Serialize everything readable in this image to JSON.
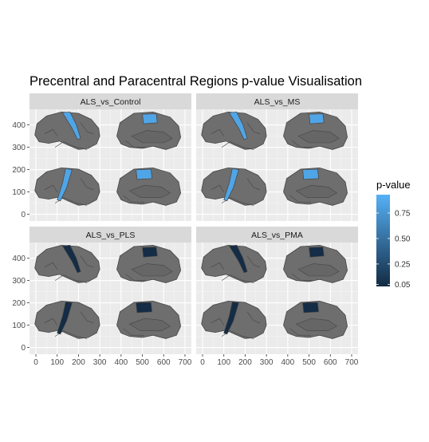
{
  "chart_data": {
    "type": "brain-atlas-facet",
    "title": "Precentral and Paracentral Regions p-value Visualisation",
    "xlabel": "",
    "ylabel": "",
    "x_ticks": [
      0,
      100,
      200,
      300,
      400,
      500,
      600,
      700
    ],
    "y_ticks": [
      0,
      100,
      200,
      300,
      400
    ],
    "xlim": [
      -30,
      730
    ],
    "ylim": [
      -30,
      470
    ],
    "grid": true,
    "legend": {
      "title": "p-value",
      "position": "right",
      "ticks": [
        0.05,
        0.25,
        0.5,
        0.75
      ],
      "range": [
        0.03,
        0.93
      ],
      "colors": {
        "low": "#132B43",
        "high": "#56B1F7"
      }
    },
    "regions": [
      "precentral",
      "paracentral"
    ],
    "panels": [
      {
        "label": "ALS_vs_Control",
        "pvalue_precentral": 0.85,
        "pvalue_paracentral": 0.85
      },
      {
        "label": "ALS_vs_MS",
        "pvalue_precentral": 0.85,
        "pvalue_paracentral": 0.85
      },
      {
        "label": "ALS_vs_PLS",
        "pvalue_precentral": 0.04,
        "pvalue_paracentral": 0.04
      },
      {
        "label": "ALS_vs_PMA",
        "pvalue_precentral": 0.04,
        "pvalue_paracentral": 0.04
      }
    ]
  }
}
